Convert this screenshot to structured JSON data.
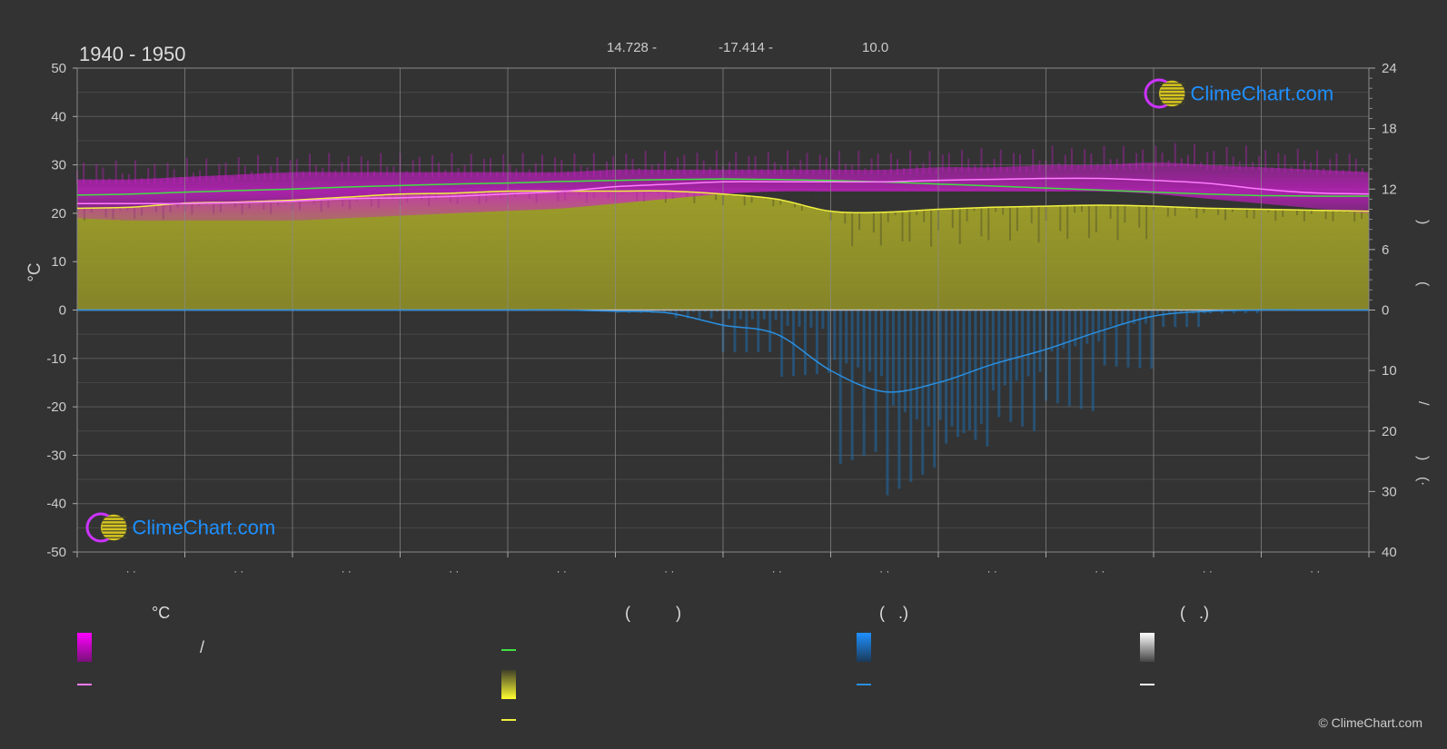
{
  "header": {
    "period": "1940 - 1950",
    "coord_lat": "14.728 -",
    "coord_lon": "-17.414 -",
    "elevation": "10.0"
  },
  "brand": {
    "name": "ClimeChart.com",
    "copyright": "© ClimeChart.com"
  },
  "axes": {
    "left_unit": "°C",
    "left_ticks": [
      50,
      40,
      30,
      20,
      10,
      0,
      -10,
      -20,
      -30,
      -40,
      -50
    ],
    "right_upper_ticks": [
      24,
      18,
      12,
      6,
      0
    ],
    "right_lower_ticks": [
      10,
      20,
      30,
      40
    ],
    "right_title_glyphs": [
      ")",
      "(",
      "/",
      ")",
      "·",
      "("
    ],
    "month_placeholders": [
      "· ·",
      "· ·",
      "· ·",
      "· ·",
      "· ·",
      "· ·",
      "· ·",
      "· ·",
      "· ·",
      "· ·",
      "· ·",
      "· ·"
    ]
  },
  "legend": {
    "temp_header": "°C",
    "sun_header": "(          )",
    "rain_header": "(   .)",
    "snow_header": "(   .)",
    "slash_text": "/"
  },
  "colors": {
    "background": "#333333",
    "grid": "#555555",
    "temp_band": "#d01cd0",
    "temp_mean": "#ff7bff",
    "daylight": "#40e040",
    "sunshine_fill": "#a3a32a",
    "sunshine_line": "#f0f040",
    "rain_bars": "#1e6aa8",
    "rain_line": "#2a8fe0",
    "snow_line": "#ffffff",
    "brand_blue": "#1e90ff"
  },
  "chart_data": {
    "type": "area",
    "title": "1940 - 1950",
    "ylabel": "°C",
    "ylim": [
      -50,
      50
    ],
    "ylim_right_upper": [
      0,
      24
    ],
    "ylim_right_lower": [
      0,
      40
    ],
    "x": [
      0.0,
      0.5,
      1.0,
      1.5,
      2.0,
      2.5,
      3.0,
      3.5,
      4.0,
      4.5,
      5.0,
      5.5,
      6.0,
      6.5,
      7.0,
      7.5,
      8.0,
      8.5,
      9.0,
      9.5,
      10.0,
      10.5,
      11.0,
      11.5,
      12.0
    ],
    "series": [
      {
        "name": "temp_max",
        "values": [
          27,
          27,
          27.5,
          28,
          28.5,
          28.5,
          28.5,
          28.5,
          28.5,
          28.5,
          29,
          29,
          29,
          29,
          29,
          29,
          29.5,
          29.5,
          30,
          30,
          30.5,
          30,
          29.5,
          29,
          28.5
        ]
      },
      {
        "name": "temp_min",
        "values": [
          19,
          18.5,
          18.5,
          18.5,
          18.5,
          19,
          19.5,
          20,
          20.5,
          21,
          22,
          23,
          24,
          24.5,
          24.5,
          24.5,
          24.5,
          24.5,
          24.5,
          24.5,
          24,
          23,
          22,
          21,
          20
        ]
      },
      {
        "name": "temp_mean",
        "values": [
          22,
          22,
          22,
          22.2,
          22.5,
          23,
          23.2,
          23.5,
          24,
          24.5,
          25.5,
          26,
          26.5,
          26.5,
          26.5,
          26.5,
          26.8,
          27,
          27.2,
          27.2,
          26.8,
          26.2,
          25,
          24.2,
          24
        ]
      },
      {
        "name": "daylight",
        "values": [
          11.4,
          11.5,
          11.7,
          11.85,
          12,
          12.2,
          12.35,
          12.5,
          12.6,
          12.75,
          12.85,
          12.95,
          13,
          12.95,
          12.85,
          12.7,
          12.5,
          12.3,
          12.1,
          11.9,
          11.7,
          11.5,
          11.35,
          11.3,
          11.3
        ]
      },
      {
        "name": "sunshine",
        "values": [
          10.1,
          10.2,
          10.6,
          10.7,
          10.9,
          11.2,
          11.5,
          11.6,
          11.8,
          11.8,
          11.8,
          11.8,
          11.5,
          11.0,
          9.8,
          9.7,
          10.0,
          10.2,
          10.3,
          10.4,
          10.3,
          10.1,
          10.0,
          9.9,
          9.8
        ]
      },
      {
        "name": "rain",
        "values": [
          0,
          0,
          0,
          0,
          0,
          0,
          0,
          0,
          0,
          0,
          0.2,
          0.5,
          2.5,
          4.0,
          10.0,
          13.5,
          12.0,
          9.0,
          6.5,
          3.5,
          1.0,
          0.2,
          0,
          0,
          0
        ]
      }
    ]
  }
}
